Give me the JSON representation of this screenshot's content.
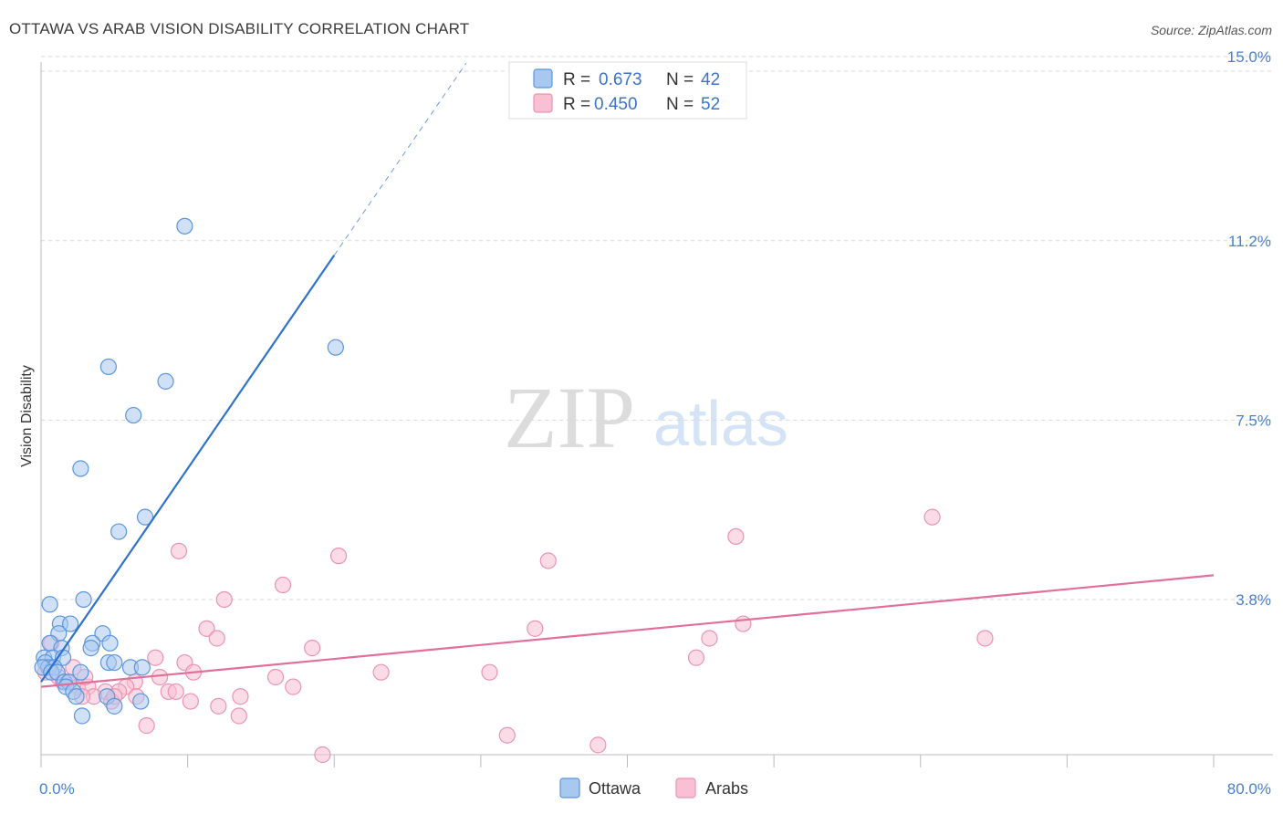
{
  "title": "OTTAWA VS ARAB VISION DISABILITY CORRELATION CHART",
  "source": "Source: ZipAtlas.com",
  "watermark": {
    "zip": "ZIP",
    "atlas": "atlas"
  },
  "colors": {
    "ottawa_fill": "#a9c8f0",
    "ottawa_stroke": "#5b95dc",
    "ottawa_line": "#2f72cc",
    "arabs_fill": "#f8c0d2",
    "arabs_stroke": "#e994b0",
    "arabs_line": "#e0709a",
    "tick_text": "#4a7fcf",
    "grid": "#d9d9d9"
  },
  "legend": {
    "ottawa": {
      "r_label": "R =",
      "r_value": "0.673",
      "n_label": "N =",
      "n_value": "42"
    },
    "arabs": {
      "r_label": "R =",
      "r_value": "0.450",
      "n_label": "N =",
      "n_value": "52"
    }
  },
  "bottom_legend": [
    "Ottawa",
    "Arabs"
  ],
  "chart_data": {
    "type": "scatter",
    "title": "OTTAWA VS ARAB VISION DISABILITY CORRELATION CHART",
    "xlabel": "",
    "ylabel": "Vision Disability",
    "xlim": [
      0,
      80
    ],
    "ylim": [
      0.6,
      15.6
    ],
    "x_tick_labels": [
      "0.0%",
      "80.0%"
    ],
    "y_ticks": [
      3.8,
      7.5,
      11.2,
      15.0
    ],
    "y_tick_labels": [
      "3.8%",
      "7.5%",
      "11.2%",
      "15.0%"
    ],
    "grid": true,
    "legend_position": "top-center",
    "series": [
      {
        "name": "Ottawa",
        "r": 0.673,
        "n": 42,
        "trend": {
          "x0": 0.0,
          "y0": 2.1,
          "x1": 20.0,
          "y1": 10.9,
          "dash_to_x": 29.0
        },
        "points": [
          [
            9.8,
            11.5
          ],
          [
            20.1,
            9.0
          ],
          [
            4.6,
            8.6
          ],
          [
            8.5,
            8.3
          ],
          [
            6.3,
            7.6
          ],
          [
            2.7,
            6.5
          ],
          [
            7.1,
            5.5
          ],
          [
            5.3,
            5.2
          ],
          [
            0.6,
            3.7
          ],
          [
            2.9,
            3.8
          ],
          [
            1.3,
            3.3
          ],
          [
            2.0,
            3.3
          ],
          [
            1.2,
            3.1
          ],
          [
            4.2,
            3.1
          ],
          [
            0.6,
            2.9
          ],
          [
            4.7,
            2.9
          ],
          [
            3.5,
            2.9
          ],
          [
            1.4,
            2.8
          ],
          [
            0.2,
            2.6
          ],
          [
            0.8,
            2.6
          ],
          [
            1.5,
            2.6
          ],
          [
            0.3,
            2.5
          ],
          [
            0.5,
            2.4
          ],
          [
            0.9,
            2.4
          ],
          [
            4.6,
            2.5
          ],
          [
            5.0,
            2.5
          ],
          [
            0.1,
            2.4
          ],
          [
            0.7,
            2.3
          ],
          [
            1.1,
            2.3
          ],
          [
            2.7,
            2.3
          ],
          [
            6.1,
            2.4
          ],
          [
            6.9,
            2.4
          ],
          [
            1.6,
            2.1
          ],
          [
            1.9,
            2.1
          ],
          [
            1.7,
            2.0
          ],
          [
            2.2,
            1.9
          ],
          [
            4.5,
            1.8
          ],
          [
            2.4,
            1.8
          ],
          [
            5.0,
            1.6
          ],
          [
            2.8,
            1.4
          ],
          [
            3.4,
            2.8
          ],
          [
            6.8,
            1.7
          ]
        ]
      },
      {
        "name": "Arabs",
        "r": 0.45,
        "n": 52,
        "trend": {
          "x0": 0.0,
          "y0": 2.0,
          "x1": 80.0,
          "y1": 4.3
        },
        "points": [
          [
            60.8,
            5.5
          ],
          [
            47.4,
            5.1
          ],
          [
            9.4,
            4.8
          ],
          [
            20.3,
            4.7
          ],
          [
            34.6,
            4.6
          ],
          [
            16.5,
            4.1
          ],
          [
            12.5,
            3.8
          ],
          [
            47.9,
            3.3
          ],
          [
            33.7,
            3.2
          ],
          [
            11.3,
            3.2
          ],
          [
            64.4,
            3.0
          ],
          [
            45.6,
            3.0
          ],
          [
            12.0,
            3.0
          ],
          [
            0.7,
            2.9
          ],
          [
            18.5,
            2.8
          ],
          [
            7.8,
            2.6
          ],
          [
            44.7,
            2.6
          ],
          [
            9.8,
            2.5
          ],
          [
            0.6,
            2.4
          ],
          [
            23.2,
            2.3
          ],
          [
            30.6,
            2.3
          ],
          [
            10.4,
            2.3
          ],
          [
            8.1,
            2.2
          ],
          [
            1.2,
            2.2
          ],
          [
            1.8,
            2.1
          ],
          [
            2.5,
            2.0
          ],
          [
            16.0,
            2.2
          ],
          [
            17.2,
            2.0
          ],
          [
            6.4,
            2.1
          ],
          [
            3.2,
            2.0
          ],
          [
            5.8,
            2.0
          ],
          [
            4.4,
            1.9
          ],
          [
            8.7,
            1.9
          ],
          [
            9.2,
            1.9
          ],
          [
            5.3,
            1.9
          ],
          [
            3.6,
            1.8
          ],
          [
            13.6,
            1.8
          ],
          [
            6.5,
            1.8
          ],
          [
            4.8,
            1.7
          ],
          [
            10.2,
            1.7
          ],
          [
            2.8,
            1.8
          ],
          [
            12.1,
            1.6
          ],
          [
            13.5,
            1.4
          ],
          [
            7.2,
            1.2
          ],
          [
            31.8,
            1.0
          ],
          [
            38.0,
            0.8
          ],
          [
            19.2,
            0.6
          ],
          [
            3.0,
            2.2
          ],
          [
            1.5,
            2.1
          ],
          [
            2.2,
            2.4
          ],
          [
            5.0,
            1.8
          ],
          [
            0.3,
            2.3
          ]
        ]
      }
    ]
  }
}
